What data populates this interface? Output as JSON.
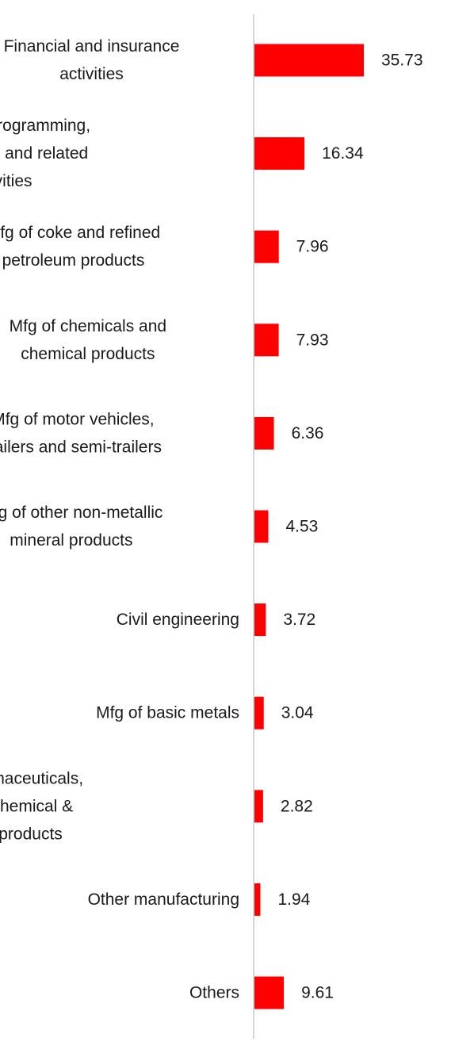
{
  "chart_data": {
    "type": "bar",
    "orientation": "horizontal",
    "categories": [
      [
        "Financial and insurance",
        "activities"
      ],
      [
        "Computer programming,",
        "consultancy and related",
        "activities"
      ],
      [
        "Mfg of coke and refined",
        "petroleum products"
      ],
      [
        "Mfg of chemicals and",
        "chemical products"
      ],
      [
        "Mfg of motor vehicles,",
        "trailers and semi-trailers"
      ],
      [
        "Mfg of other non-metallic",
        "mineral products"
      ],
      [
        "Civil engineering"
      ],
      [
        "Mfg of basic metals"
      ],
      [
        "Mfg of pharmaceuticals,",
        "medicinal chemical &",
        "botanical products"
      ],
      [
        "Other manufacturing"
      ],
      [
        "Others"
      ]
    ],
    "values": [
      35.73,
      16.34,
      7.96,
      7.93,
      6.36,
      4.53,
      3.72,
      3.04,
      2.82,
      1.94,
      9.61
    ],
    "value_labels": [
      "35.73",
      "16.34",
      "7.96",
      "7.93",
      "6.36",
      "4.53",
      "3.72",
      "3.04",
      "2.82",
      "1.94",
      "9.61"
    ],
    "xlim": [
      0,
      76
    ],
    "bar_color": "#ff0000",
    "axis_color": "#d4d4d4",
    "grid": false,
    "legend": "none"
  }
}
